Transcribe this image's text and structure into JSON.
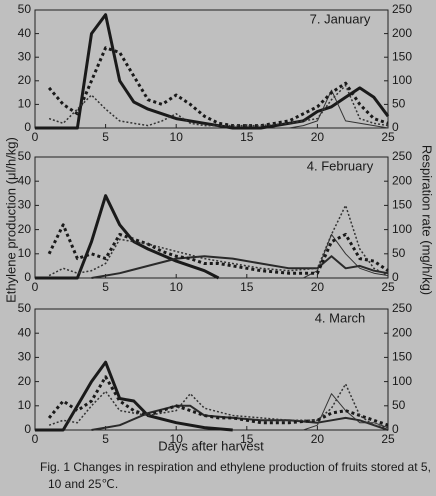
{
  "chart_data": [
    {
      "type": "line",
      "title": "7. January",
      "xlim": [
        0,
        25
      ],
      "xticks": [
        0,
        5,
        10,
        15,
        20,
        25
      ],
      "ylim": [
        0,
        50
      ],
      "yticks": [
        0,
        10,
        20,
        30,
        40,
        50
      ],
      "y2lim": [
        0,
        250
      ],
      "y2ticks": [
        0,
        50,
        100,
        150,
        200,
        250
      ],
      "series": [
        {
          "color": "#1a1a1a",
          "width": 3,
          "dash": "none",
          "axis": "y",
          "x": [
            0,
            1,
            2,
            3,
            4,
            5,
            6,
            7,
            8,
            10,
            12,
            14,
            16,
            18,
            19,
            20,
            21,
            22,
            23,
            24,
            25
          ],
          "values": [
            0,
            0,
            0,
            0,
            40,
            48,
            20,
            11,
            8,
            4,
            2,
            0,
            0,
            2,
            3,
            7,
            9,
            13,
            17,
            13,
            5
          ]
        },
        {
          "color": "#333333",
          "width": 1,
          "dash": "none",
          "axis": "y",
          "x": [
            17,
            18,
            19,
            20,
            21,
            22,
            23,
            24,
            25
          ],
          "values": [
            0,
            0,
            1,
            3,
            16,
            3,
            2,
            1,
            0
          ]
        },
        {
          "color": "#1a1a1a",
          "width": 3,
          "dash": "3,3",
          "axis": "y2",
          "x": [
            1,
            2,
            3,
            4,
            5,
            6,
            7,
            8,
            9,
            10,
            11,
            12,
            13,
            14,
            15,
            16,
            17,
            18,
            19,
            20,
            21,
            22,
            23,
            24,
            25
          ],
          "values": [
            85,
            50,
            30,
            100,
            170,
            160,
            110,
            60,
            50,
            70,
            50,
            25,
            10,
            5,
            5,
            5,
            10,
            15,
            30,
            45,
            75,
            95,
            50,
            20,
            10
          ]
        },
        {
          "color": "#333333",
          "width": 1.5,
          "dash": "2,2",
          "axis": "y2",
          "x": [
            1,
            2,
            3,
            4,
            5,
            6,
            7,
            8,
            9,
            10,
            11,
            12,
            14,
            16,
            18,
            20,
            21,
            22,
            23,
            24,
            25
          ],
          "values": [
            20,
            10,
            40,
            70,
            40,
            15,
            10,
            5,
            15,
            30,
            10,
            5,
            5,
            5,
            10,
            20,
            60,
            90,
            20,
            10,
            5
          ]
        }
      ]
    },
    {
      "type": "line",
      "title": "4. February",
      "ylabel": "Ethylene production (μl/h/kg)",
      "y2label": "Respiration rate (mg/h/kg)",
      "xlim": [
        0,
        25
      ],
      "xticks": [
        0,
        5,
        10,
        15,
        20,
        25
      ],
      "ylim": [
        0,
        50
      ],
      "yticks": [
        0,
        10,
        20,
        30,
        40,
        50
      ],
      "y2lim": [
        0,
        250
      ],
      "y2ticks": [
        0,
        50,
        100,
        150,
        200,
        250
      ],
      "series": [
        {
          "color": "#1a1a1a",
          "width": 3,
          "dash": "none",
          "axis": "y",
          "x": [
            0,
            3,
            4,
            5,
            6,
            7,
            8,
            10,
            12,
            13
          ],
          "values": [
            0,
            0,
            15,
            34,
            22,
            15,
            12,
            7,
            3,
            0
          ]
        },
        {
          "color": "#2a2a2a",
          "width": 2,
          "dash": "none",
          "axis": "y",
          "x": [
            4,
            6,
            8,
            10,
            12,
            14,
            16,
            18,
            20,
            21,
            22,
            23,
            24,
            25
          ],
          "values": [
            0,
            2,
            5,
            8,
            9,
            8,
            6,
            4,
            4,
            9,
            4,
            5,
            3,
            2
          ]
        },
        {
          "color": "#333333",
          "width": 1,
          "dash": "none",
          "axis": "y",
          "x": [
            19,
            20,
            21,
            22,
            23,
            24,
            25
          ],
          "values": [
            0,
            3,
            18,
            10,
            4,
            2,
            1
          ]
        },
        {
          "color": "#1a1a1a",
          "width": 3,
          "dash": "3,3",
          "axis": "y2",
          "x": [
            1,
            2,
            3,
            4,
            5,
            6,
            7,
            8,
            9,
            10,
            11,
            12,
            13,
            14,
            16,
            18,
            20,
            21,
            22,
            23,
            24,
            25
          ],
          "values": [
            50,
            110,
            40,
            50,
            40,
            90,
            80,
            70,
            55,
            45,
            40,
            30,
            30,
            25,
            15,
            10,
            10,
            75,
            90,
            40,
            35,
            15
          ]
        },
        {
          "color": "#333333",
          "width": 1.5,
          "dash": "2,2",
          "axis": "y2",
          "x": [
            1,
            2,
            3,
            4,
            5,
            6,
            8,
            10,
            12,
            14,
            16,
            18,
            20,
            21,
            22,
            23,
            24,
            25
          ],
          "values": [
            5,
            20,
            10,
            15,
            30,
            80,
            70,
            55,
            40,
            30,
            20,
            15,
            20,
            90,
            150,
            60,
            20,
            5
          ]
        }
      ]
    },
    {
      "type": "line",
      "title": "4. March",
      "xlabel": "Days after harvest",
      "xlim": [
        0,
        25
      ],
      "xticks": [
        0,
        5,
        10,
        15,
        20,
        25
      ],
      "ylim": [
        0,
        50
      ],
      "yticks": [
        0,
        10,
        20,
        30,
        40,
        50
      ],
      "y2lim": [
        0,
        250
      ],
      "y2ticks": [
        0,
        50,
        100,
        150,
        200,
        250
      ],
      "series": [
        {
          "color": "#1a1a1a",
          "width": 3,
          "dash": "none",
          "axis": "y",
          "x": [
            0,
            2,
            3,
            4,
            5,
            6,
            7,
            8,
            10,
            12,
            14
          ],
          "values": [
            0,
            0,
            10,
            20,
            28,
            13,
            12,
            6,
            3,
            1,
            0
          ]
        },
        {
          "color": "#2a2a2a",
          "width": 2,
          "dash": "none",
          "axis": "y",
          "x": [
            4,
            5,
            6,
            8,
            10,
            11,
            12,
            14,
            16,
            18,
            20,
            21,
            22,
            23,
            24,
            25
          ],
          "values": [
            0,
            1,
            2,
            7,
            10,
            10,
            6,
            5,
            4,
            4,
            3,
            4,
            5,
            4,
            2,
            0
          ]
        },
        {
          "color": "#333333",
          "width": 1,
          "dash": "none",
          "axis": "y",
          "x": [
            19,
            20,
            21,
            22,
            23,
            24,
            25
          ],
          "values": [
            0,
            2,
            15,
            8,
            3,
            3,
            1
          ]
        },
        {
          "color": "#1a1a1a",
          "width": 3,
          "dash": "3,3",
          "axis": "y2",
          "x": [
            1,
            2,
            3,
            4,
            5,
            6,
            7,
            8,
            9,
            10,
            11,
            12,
            13,
            14,
            15,
            16,
            18,
            20,
            21,
            22,
            23,
            24,
            25
          ],
          "values": [
            25,
            60,
            40,
            60,
            110,
            60,
            40,
            30,
            40,
            50,
            40,
            30,
            25,
            25,
            20,
            15,
            15,
            20,
            35,
            40,
            30,
            20,
            10
          ]
        },
        {
          "color": "#333333",
          "width": 1.5,
          "dash": "2,2",
          "axis": "y2",
          "x": [
            1,
            2,
            3,
            4,
            5,
            6,
            8,
            10,
            11,
            12,
            14,
            16,
            18,
            20,
            21,
            22,
            23,
            24,
            25
          ],
          "values": [
            10,
            20,
            15,
            50,
            80,
            40,
            30,
            40,
            75,
            45,
            30,
            25,
            20,
            20,
            45,
            95,
            30,
            10,
            5
          ]
        }
      ]
    }
  ],
  "caption": [
    "Fig. 1  Changes in respiration and ethylene production of fruits stored at 5,",
    "10 and 25℃."
  ]
}
